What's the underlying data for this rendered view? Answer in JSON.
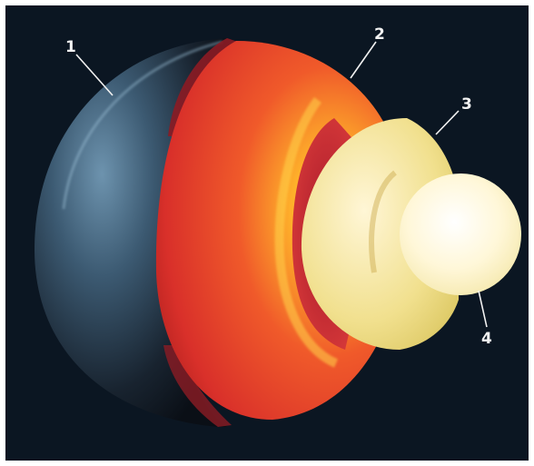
{
  "figure": {
    "callouts": [
      {
        "id": "1",
        "text": "1"
      },
      {
        "id": "2",
        "text": "2"
      },
      {
        "id": "3",
        "text": "3"
      },
      {
        "id": "4",
        "text": "4"
      }
    ]
  }
}
